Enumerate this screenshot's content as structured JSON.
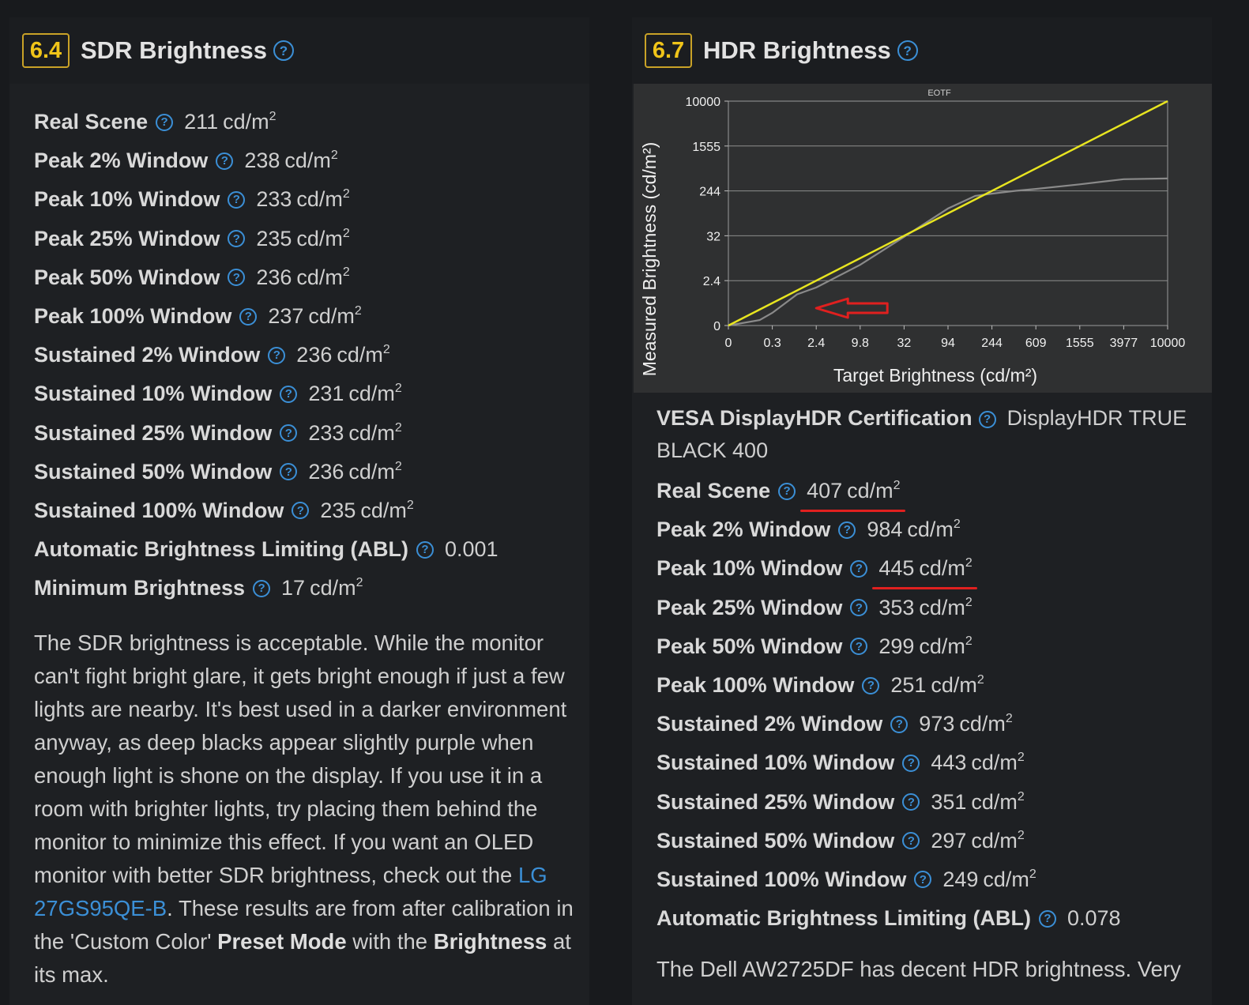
{
  "left": {
    "score": "6.4",
    "title": "SDR Brightness",
    "help_glyph": "?",
    "metrics": [
      {
        "label": "Real Scene",
        "value": "211",
        "unit": "cd/m",
        "sup": "2"
      },
      {
        "label": "Peak 2% Window",
        "value": "238",
        "unit": "cd/m",
        "sup": "2"
      },
      {
        "label": "Peak 10% Window",
        "value": "233",
        "unit": "cd/m",
        "sup": "2"
      },
      {
        "label": "Peak 25% Window",
        "value": "235",
        "unit": "cd/m",
        "sup": "2"
      },
      {
        "label": "Peak 50% Window",
        "value": "236",
        "unit": "cd/m",
        "sup": "2"
      },
      {
        "label": "Peak 100% Window",
        "value": "237",
        "unit": "cd/m",
        "sup": "2"
      },
      {
        "label": "Sustained 2% Window",
        "value": "236",
        "unit": "cd/m",
        "sup": "2"
      },
      {
        "label": "Sustained 10% Window",
        "value": "231",
        "unit": "cd/m",
        "sup": "2"
      },
      {
        "label": "Sustained 25% Window",
        "value": "233",
        "unit": "cd/m",
        "sup": "2"
      },
      {
        "label": "Sustained 50% Window",
        "value": "236",
        "unit": "cd/m",
        "sup": "2"
      },
      {
        "label": "Sustained 100% Window",
        "value": "235",
        "unit": "cd/m",
        "sup": "2"
      },
      {
        "label": "Automatic Brightness Limiting (ABL)",
        "value": "0.001",
        "unit": "",
        "sup": ""
      },
      {
        "label": "Minimum Brightness",
        "value": "17",
        "unit": "cd/m",
        "sup": "2"
      }
    ],
    "paragraph": {
      "text1": "The SDR brightness is acceptable. While the monitor can't fight bright glare, it gets bright enough if just a few lights are nearby. It's best used in a darker environment anyway, as deep blacks appear slightly purple when enough light is shone on the display. If you use it in a room with brighter lights, try placing them behind the monitor to minimize this effect. If you want an OLED monitor with better SDR brightness, check out the ",
      "link": "LG 27GS95QE-B",
      "text2": ". These results are from after calibration in the 'Custom Color' ",
      "bold1": "Preset Mode",
      "text3": " with the ",
      "bold2": "Brightness",
      "text4": " at its max."
    }
  },
  "right": {
    "score": "6.7",
    "title": "HDR Brightness",
    "help_glyph": "?",
    "certification": {
      "label": "VESA DisplayHDR Certification",
      "value": "DisplayHDR TRUE BLACK 400"
    },
    "metrics": [
      {
        "label": "Real Scene",
        "value": "407",
        "unit": "cd/m",
        "sup": "2",
        "underlined": true
      },
      {
        "label": "Peak 2% Window",
        "value": "984",
        "unit": "cd/m",
        "sup": "2"
      },
      {
        "label": "Peak 10% Window",
        "value": "445",
        "unit": "cd/m",
        "sup": "2",
        "underlined": true
      },
      {
        "label": "Peak 25% Window",
        "value": "353",
        "unit": "cd/m",
        "sup": "2"
      },
      {
        "label": "Peak 50% Window",
        "value": "299",
        "unit": "cd/m",
        "sup": "2"
      },
      {
        "label": "Peak 100% Window",
        "value": "251",
        "unit": "cd/m",
        "sup": "2"
      },
      {
        "label": "Sustained 2% Window",
        "value": "973",
        "unit": "cd/m",
        "sup": "2"
      },
      {
        "label": "Sustained 10% Window",
        "value": "443",
        "unit": "cd/m",
        "sup": "2"
      },
      {
        "label": "Sustained 25% Window",
        "value": "351",
        "unit": "cd/m",
        "sup": "2"
      },
      {
        "label": "Sustained 50% Window",
        "value": "297",
        "unit": "cd/m",
        "sup": "2"
      },
      {
        "label": "Sustained 100% Window",
        "value": "249",
        "unit": "cd/m",
        "sup": "2"
      },
      {
        "label": "Automatic Brightness Limiting (ABL)",
        "value": "0.078",
        "unit": "",
        "sup": ""
      }
    ],
    "paragraph": "The Dell AW2725DF has decent HDR brightness. Very"
  },
  "chart_data": {
    "type": "line",
    "title": "EOTF",
    "xlabel": "Target Brightness (cd/m²)",
    "ylabel": "Measured Brightness (cd/m²)",
    "x_ticks": [
      "0",
      "0.3",
      "2.4",
      "9.8",
      "32",
      "94",
      "244",
      "609",
      "1555",
      "3977",
      "10000"
    ],
    "y_ticks": [
      "10000",
      "1555",
      "244",
      "32",
      "2.4",
      "0"
    ],
    "series": [
      {
        "color": "#e8e520",
        "x": [
          0,
          10000
        ],
        "y": [
          0,
          10000
        ]
      },
      {
        "color": "#8a8a8a",
        "x": [
          0,
          0.15,
          0.3,
          1,
          2.4,
          9.8,
          32,
          94,
          170,
          244,
          400,
          609,
          1555,
          3977,
          10000
        ],
        "y": [
          0,
          0.03,
          0.1,
          0.7,
          1.3,
          6,
          30,
          110,
          195,
          215,
          245,
          265,
          320,
          395,
          407
        ]
      }
    ],
    "annotation": {
      "type": "arrow",
      "color": "#e0201f",
      "points_at_x": "2.4"
    },
    "grid": true,
    "background": "#2f3031"
  }
}
